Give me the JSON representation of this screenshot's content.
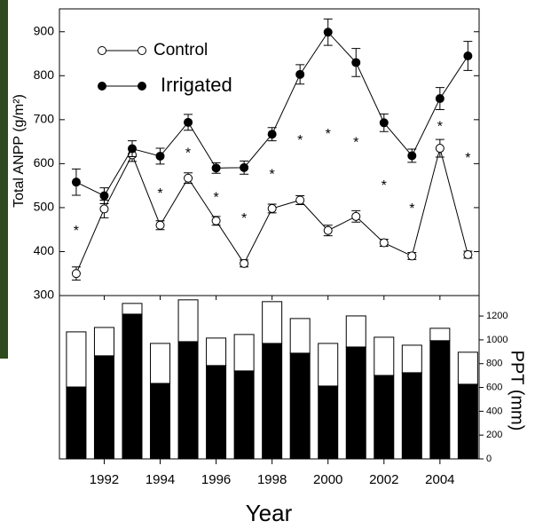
{
  "chart_data": [
    {
      "type": "line",
      "ylabel": "Total ANPP (g/m²)",
      "x": [
        1991,
        1992,
        1993,
        1994,
        1995,
        1996,
        1997,
        1998,
        1999,
        2000,
        2001,
        2002,
        2003,
        2004,
        2005
      ],
      "xlim": [
        1990.4,
        2005.4
      ],
      "xticks": [
        1992,
        1994,
        1996,
        1998,
        2000,
        2002,
        2004
      ],
      "ylim": [
        300,
        952
      ],
      "yticks": [
        300,
        400,
        500,
        600,
        700,
        800,
        900
      ],
      "series": [
        {
          "name": "Control",
          "color": "#ffffff",
          "values": [
            350,
            497,
            620,
            460,
            567,
            470,
            373,
            498,
            517,
            448,
            480,
            420,
            390,
            635,
            393
          ],
          "errors": [
            15,
            20,
            15,
            10,
            12,
            10,
            8,
            10,
            10,
            12,
            13,
            8,
            8,
            20,
            8
          ]
        },
        {
          "name": "Irrigated",
          "color": "#000000",
          "values": [
            558,
            527,
            634,
            617,
            694,
            590,
            591,
            667,
            803,
            899,
            830,
            693,
            618,
            748,
            845
          ],
          "errors": [
            30,
            18,
            18,
            18,
            18,
            12,
            15,
            15,
            22,
            30,
            32,
            20,
            15,
            25,
            33
          ]
        }
      ],
      "annotations": [
        {
          "x": 1991,
          "text": "*"
        },
        {
          "x": 1994,
          "text": "*"
        },
        {
          "x": 1995,
          "text": "*"
        },
        {
          "x": 1996,
          "text": "*"
        },
        {
          "x": 1997,
          "text": "*"
        },
        {
          "x": 1998,
          "text": "*"
        },
        {
          "x": 1999,
          "text": "*"
        },
        {
          "x": 2000,
          "text": "*"
        },
        {
          "x": 2001,
          "text": "*"
        },
        {
          "x": 2002,
          "text": "*"
        },
        {
          "x": 2003,
          "text": "*"
        },
        {
          "x": 2004,
          "text": "*"
        },
        {
          "x": 2005,
          "text": "*"
        }
      ]
    },
    {
      "type": "bar",
      "stacked": true,
      "xlabel": "Year",
      "y2label": "PPT (mm)",
      "y2lim": [
        0,
        1372
      ],
      "y2ticks": [
        0,
        200,
        400,
        600,
        800,
        1000,
        1200
      ],
      "series": [
        {
          "color": "#000000",
          "values": [
            604,
            866,
            1216,
            634,
            985,
            784,
            739,
            970,
            888,
            612,
            940,
            701,
            724,
            993,
            627
          ]
        },
        {
          "color": "#ffffff",
          "values": [
            463,
            238,
            90,
            336,
            351,
            231,
            306,
            351,
            291,
            358,
            261,
            321,
            231,
            104,
            269
          ]
        }
      ]
    }
  ]
}
